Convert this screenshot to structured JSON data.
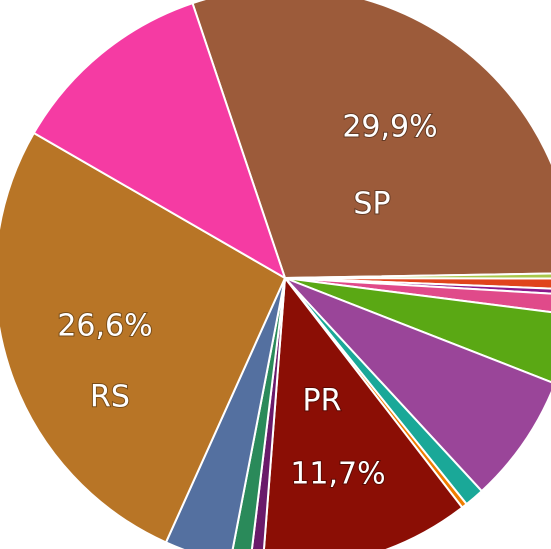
{
  "chart_data": {
    "type": "pie",
    "categories": [
      "SP",
      null,
      null,
      null,
      null,
      null,
      null,
      null,
      null,
      "PR",
      null,
      null,
      null,
      "RS",
      null
    ],
    "values": [
      29.9,
      0.3,
      0.6,
      0.3,
      1.1,
      3.9,
      7.2,
      1.1,
      0.3,
      11.7,
      0.7,
      1.1,
      3.7,
      26.6,
      11.5
    ],
    "value_labels": [
      "29,9%",
      null,
      null,
      null,
      null,
      null,
      null,
      null,
      null,
      "11,7%",
      null,
      null,
      null,
      "26,6%",
      null
    ],
    "colors": [
      "#9c5b3a",
      "#a8c84a",
      "#e0441c",
      "#8b1a8b",
      "#e04a8a",
      "#5aa814",
      "#9a4599",
      "#1aa898",
      "#f07d00",
      "#8b0e05",
      "#6a1a6a",
      "#2a8a5a",
      "#5470a0",
      "#b87526",
      "#f53ba3"
    ]
  }
}
